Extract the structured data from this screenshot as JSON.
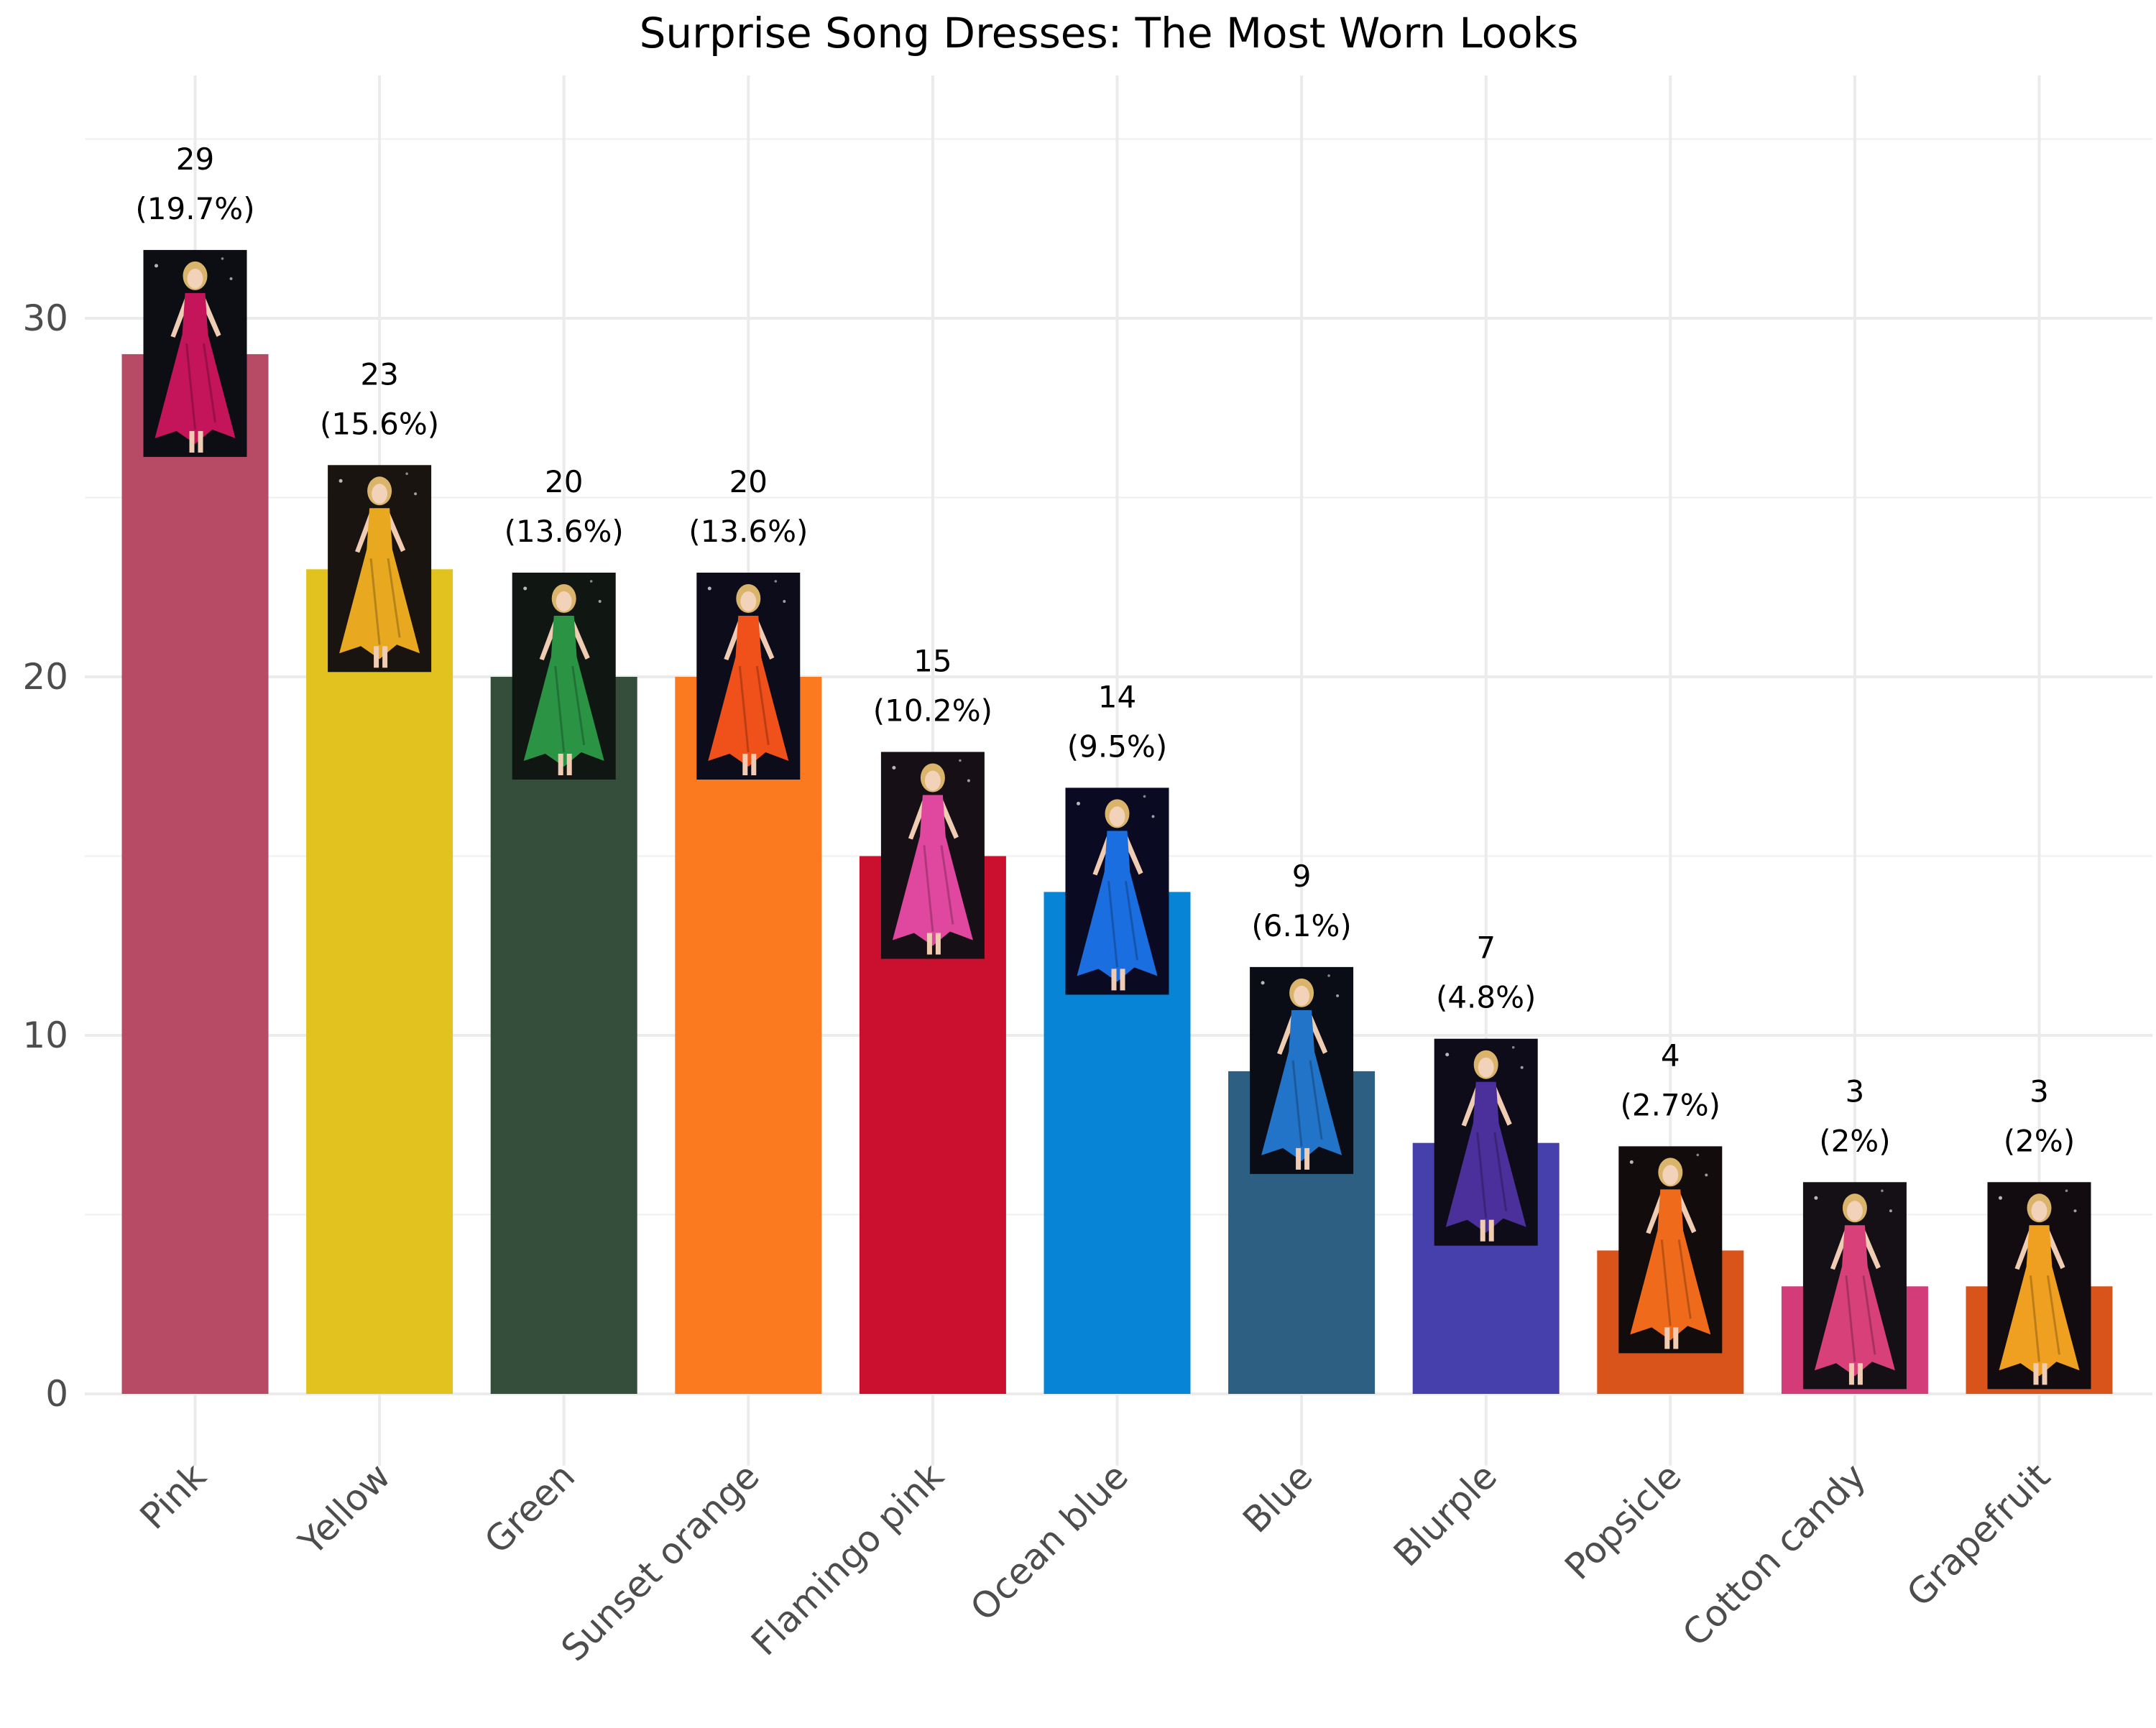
{
  "chart_data": {
    "type": "bar",
    "title": "Surprise Song Dresses: The Most Worn Looks",
    "xlabel": "",
    "ylabel": "",
    "categories": [
      "Pink",
      "Yellow",
      "Green",
      "Sunset orange",
      "Flamingo pink",
      "Ocean blue",
      "Blue",
      "Blurple",
      "Popsicle",
      "Cotton candy",
      "Grapefruit"
    ],
    "values": [
      29,
      23,
      20,
      20,
      15,
      14,
      9,
      7,
      4,
      3,
      3
    ],
    "value_labels": [
      "29",
      "23",
      "20",
      "20",
      "15",
      "14",
      "9",
      "7",
      "4",
      "3",
      "3"
    ],
    "percent_labels": [
      "(19.7%)",
      "(15.6%)",
      "(13.6%)",
      "(13.6%)",
      "(10.2%)",
      "(9.5%)",
      "(6.1%)",
      "(4.8%)",
      "(2.7%)",
      "(2%)",
      "(2%)"
    ],
    "bar_colors": [
      "#b74b66",
      "#e2c21f",
      "#354d3b",
      "#fb7a1f",
      "#cb0f2e",
      "#0784d5",
      "#2c5f81",
      "#4640ad",
      "#d9541a",
      "#d33b79",
      "#d9541a"
    ],
    "photo_colors": [
      {
        "bg": "#0d0d14",
        "dress": "#c4145a"
      },
      {
        "bg": "#1a1410",
        "dress": "#e8a820"
      },
      {
        "bg": "#101612",
        "dress": "#2a9444"
      },
      {
        "bg": "#0c0c1a",
        "dress": "#f0501a"
      },
      {
        "bg": "#161016",
        "dress": "#e0479e"
      },
      {
        "bg": "#0a0a22",
        "dress": "#1a6ee0"
      },
      {
        "bg": "#0a0d16",
        "dress": "#2274c8"
      },
      {
        "bg": "#0e0c18",
        "dress": "#4b2f9a"
      },
      {
        "bg": "#120c0c",
        "dress": "#f06a1c"
      },
      {
        "bg": "#141016",
        "dress": "#d8407a"
      },
      {
        "bg": "#120c10",
        "dress": "#f0a020"
      }
    ],
    "y_ticks": [
      "0",
      "10",
      "20",
      "30"
    ],
    "ylim": [
      -2,
      35.5
    ],
    "grid": true,
    "legend": "none"
  }
}
